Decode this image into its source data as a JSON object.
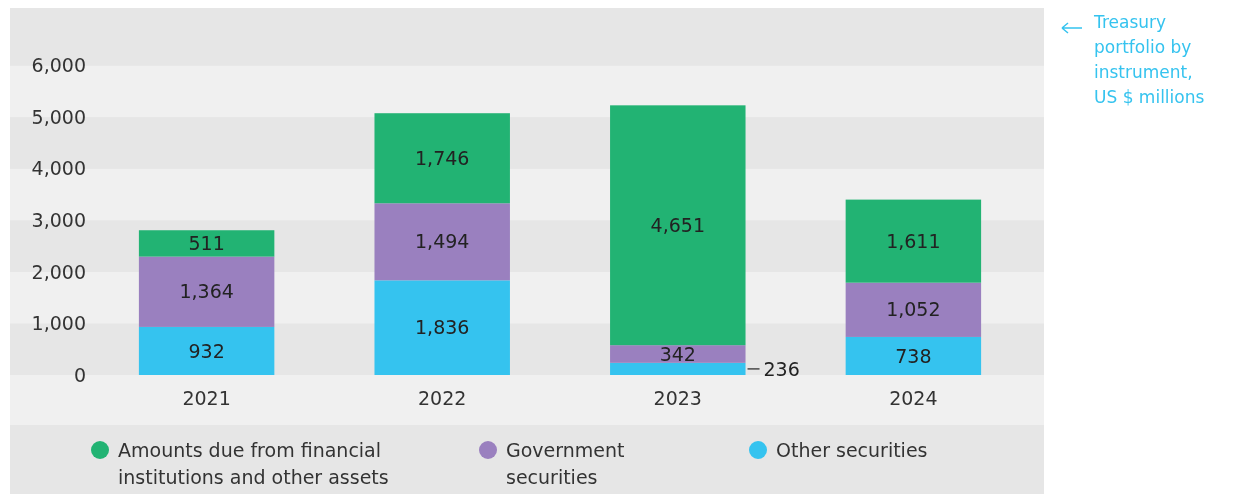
{
  "chart_data": {
    "type": "bar",
    "title": "Treasury portfolio by instrument, US $ millions",
    "categories": [
      "2021",
      "2022",
      "2023",
      "2024"
    ],
    "stacked": true,
    "series": [
      {
        "name": "Other securities",
        "color": "#35c3ef",
        "values": [
          932,
          1836,
          236,
          738
        ],
        "value_labels": [
          "932",
          "1,836",
          "236",
          "738"
        ]
      },
      {
        "name": "Government securities",
        "color": "#9a80bf",
        "values": [
          1364,
          1494,
          342,
          1052
        ],
        "value_labels": [
          "1,364",
          "1,494",
          "342",
          "1,052"
        ]
      },
      {
        "name": "Amounts due from financial institutions and other assets",
        "color": "#22b373",
        "values": [
          511,
          1746,
          4651,
          1611
        ],
        "value_labels": [
          "511",
          "1,746",
          "4,651",
          "1,611"
        ]
      }
    ],
    "ylim": [
      0,
      7000
    ],
    "yticks": [
      {
        "value": 0,
        "label": "0"
      },
      {
        "value": 1000,
        "label": "1,000"
      },
      {
        "value": 2000,
        "label": "2,000"
      },
      {
        "value": 3000,
        "label": "3,000"
      },
      {
        "value": 4000,
        "label": "4,000"
      },
      {
        "value": 5000,
        "label": "5,000"
      },
      {
        "value": 6000,
        "label": "6,000"
      }
    ],
    "legend": "bottom"
  }
}
